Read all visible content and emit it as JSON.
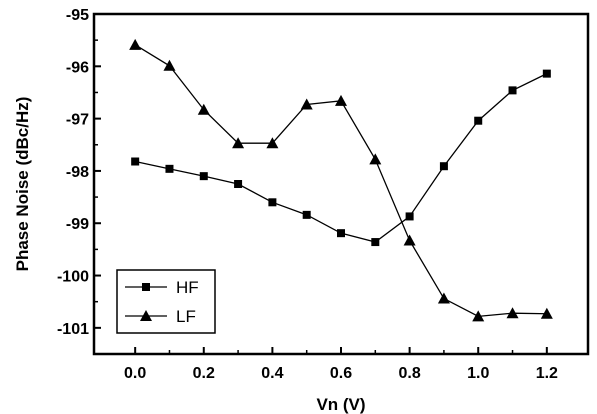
{
  "chart_data": {
    "type": "line",
    "xlabel": "Vn (V)",
    "ylabel": "Phase Noise (dBc/Hz)",
    "xlim": [
      -0.12,
      1.32
    ],
    "ylim": [
      -101.5,
      -95
    ],
    "xticks": [
      0.0,
      0.2,
      0.4,
      0.6,
      0.8,
      1.0,
      1.2
    ],
    "xtick_labels": [
      "0.0",
      "0.2",
      "0.4",
      "0.6",
      "0.8",
      "1.0",
      "1.2"
    ],
    "yticks": [
      -95,
      -96,
      -97,
      -98,
      -99,
      -100,
      -101
    ],
    "ytick_labels": [
      "-95",
      "-96",
      "-97",
      "-98",
      "-99",
      "-100",
      "-101"
    ],
    "grid": false,
    "legend_position": "bottom-left",
    "x": [
      0.0,
      0.1,
      0.2,
      0.3,
      0.4,
      0.5,
      0.6,
      0.7,
      0.8,
      0.9,
      1.0,
      1.1,
      1.2
    ],
    "series": [
      {
        "name": "HF",
        "marker": "square",
        "values": [
          -97.82,
          -97.96,
          -98.1,
          -98.25,
          -98.6,
          -98.84,
          -99.19,
          -99.36,
          -98.87,
          -97.91,
          -97.04,
          -96.46,
          -96.14
        ]
      },
      {
        "name": "LF",
        "marker": "triangle",
        "values": [
          -95.59,
          -95.99,
          -96.83,
          -97.47,
          -97.47,
          -96.73,
          -96.66,
          -97.78,
          -99.33,
          -100.44,
          -100.78,
          -100.72,
          -100.73
        ]
      }
    ]
  }
}
